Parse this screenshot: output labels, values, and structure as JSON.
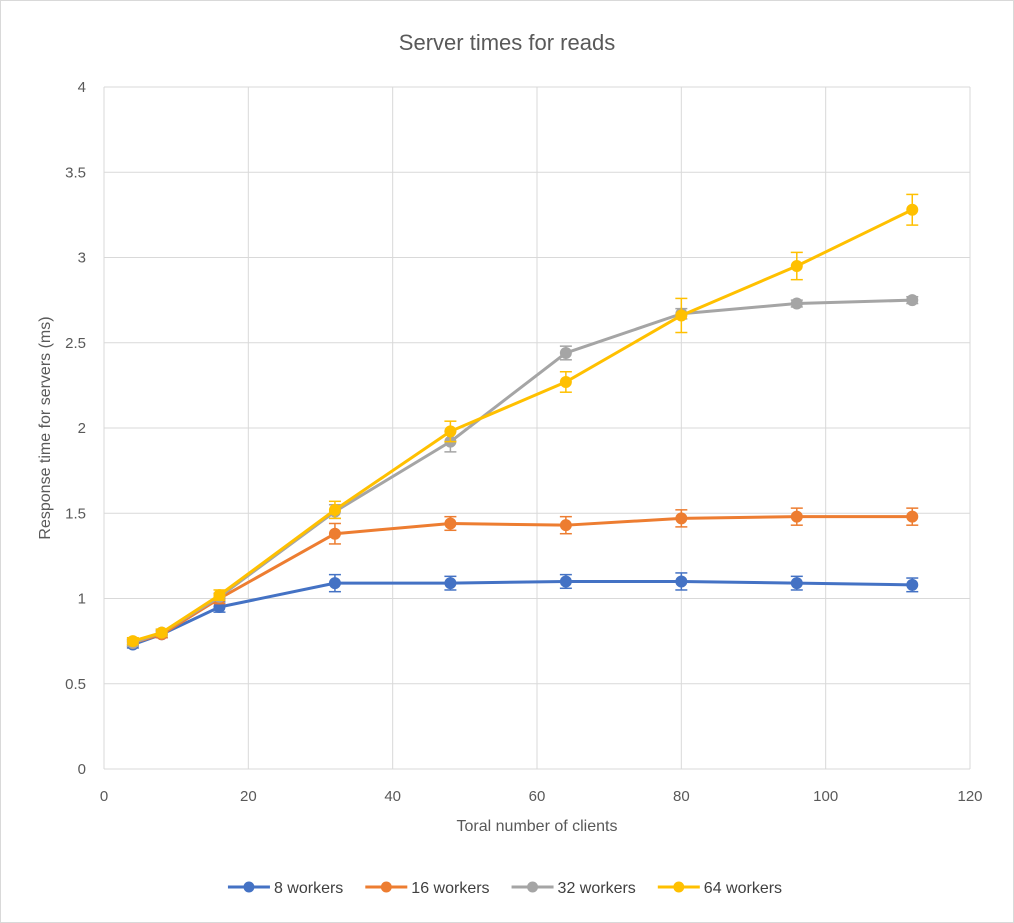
{
  "chart_data": {
    "type": "line",
    "title": "Server times for reads",
    "xlabel": "Toral number of clients",
    "ylabel": "Response time for servers (ms)",
    "xlim": [
      0,
      120
    ],
    "ylim": [
      0,
      4
    ],
    "xticks": [
      0,
      20,
      40,
      60,
      80,
      100,
      120
    ],
    "yticks": [
      0,
      0.5,
      1,
      1.5,
      2,
      2.5,
      3,
      3.5,
      4
    ],
    "grid": true,
    "legend_position": "bottom",
    "x": [
      4,
      8,
      16,
      32,
      48,
      64,
      80,
      96,
      112
    ],
    "series": [
      {
        "name": "8 workers",
        "color": "#4472C4",
        "values": [
          0.73,
          0.79,
          0.95,
          1.09,
          1.09,
          1.1,
          1.1,
          1.09,
          1.08
        ],
        "errors": [
          0.02,
          0.02,
          0.03,
          0.05,
          0.04,
          0.04,
          0.05,
          0.04,
          0.04
        ]
      },
      {
        "name": "16 workers",
        "color": "#ED7D31",
        "values": [
          0.74,
          0.79,
          1.0,
          1.38,
          1.44,
          1.43,
          1.47,
          1.48,
          1.48
        ],
        "errors": [
          0.02,
          0.02,
          0.03,
          0.06,
          0.04,
          0.05,
          0.05,
          0.05,
          0.05
        ]
      },
      {
        "name": "32 workers",
        "color": "#A5A5A5",
        "values": [
          0.74,
          0.8,
          1.01,
          1.51,
          1.92,
          2.44,
          2.67,
          2.73,
          2.75
        ],
        "errors": [
          0.02,
          0.02,
          0.02,
          0.04,
          0.06,
          0.04,
          0.03,
          0.02,
          0.02
        ]
      },
      {
        "name": "64 workers",
        "color": "#FFC000",
        "values": [
          0.75,
          0.8,
          1.02,
          1.52,
          1.98,
          2.27,
          2.66,
          2.95,
          3.28
        ],
        "errors": [
          0.02,
          0.02,
          0.03,
          0.05,
          0.06,
          0.06,
          0.1,
          0.08,
          0.09
        ]
      }
    ]
  }
}
